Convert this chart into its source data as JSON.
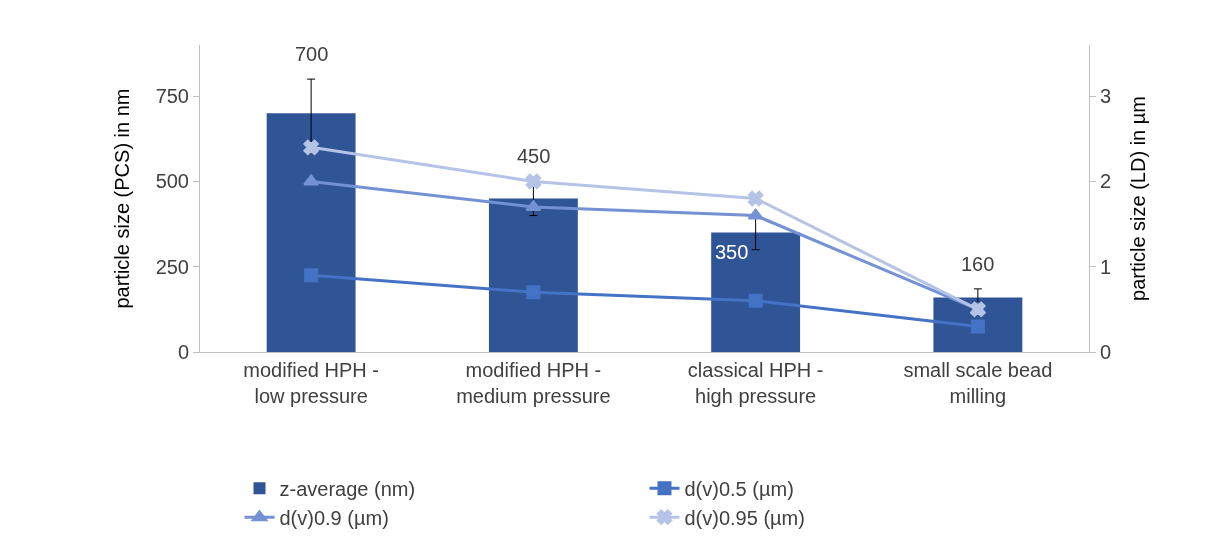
{
  "chart_data": {
    "type": "bar",
    "categories": [
      "modified HPH - low pressure",
      "modified HPH - medium pressure",
      "classical HPH - high pressure",
      "small scale bead milling"
    ],
    "ylabel": "particle size (PCS) in nm",
    "y2label": "particle size (LD) in µm",
    "ylim": [
      0,
      900
    ],
    "yticks": [
      0,
      250,
      500,
      750
    ],
    "y2lim": [
      0,
      3.6
    ],
    "y2ticks": [
      0,
      1,
      2,
      3
    ],
    "grid": false,
    "legend": "bottom",
    "series": [
      {
        "name": "z-average (nm)",
        "color": "#2f5597",
        "values": [
          700,
          450,
          350,
          160
        ],
        "value_labels": [
          "700",
          "450",
          "350",
          "160"
        ],
        "errors": [
          100,
          50,
          50,
          25
        ]
      },
      {
        "name": "d(v)0.5 (µm)",
        "type": "line",
        "axis": "y2",
        "marker": "square",
        "color": "#4472c4",
        "values": [
          0.9,
          0.7,
          0.6,
          0.3
        ]
      },
      {
        "name": "d(v)0.9 (µm)",
        "type": "line",
        "axis": "y2",
        "marker": "triangle",
        "color": "#7391d3",
        "values": [
          2.0,
          1.7,
          1.6,
          0.5
        ]
      },
      {
        "name": "d(v)0.95 (µm)",
        "type": "line",
        "axis": "y2",
        "marker": "cross",
        "color": "#b4c3e6",
        "values": [
          2.4,
          2.0,
          1.8,
          0.5
        ]
      }
    ]
  }
}
